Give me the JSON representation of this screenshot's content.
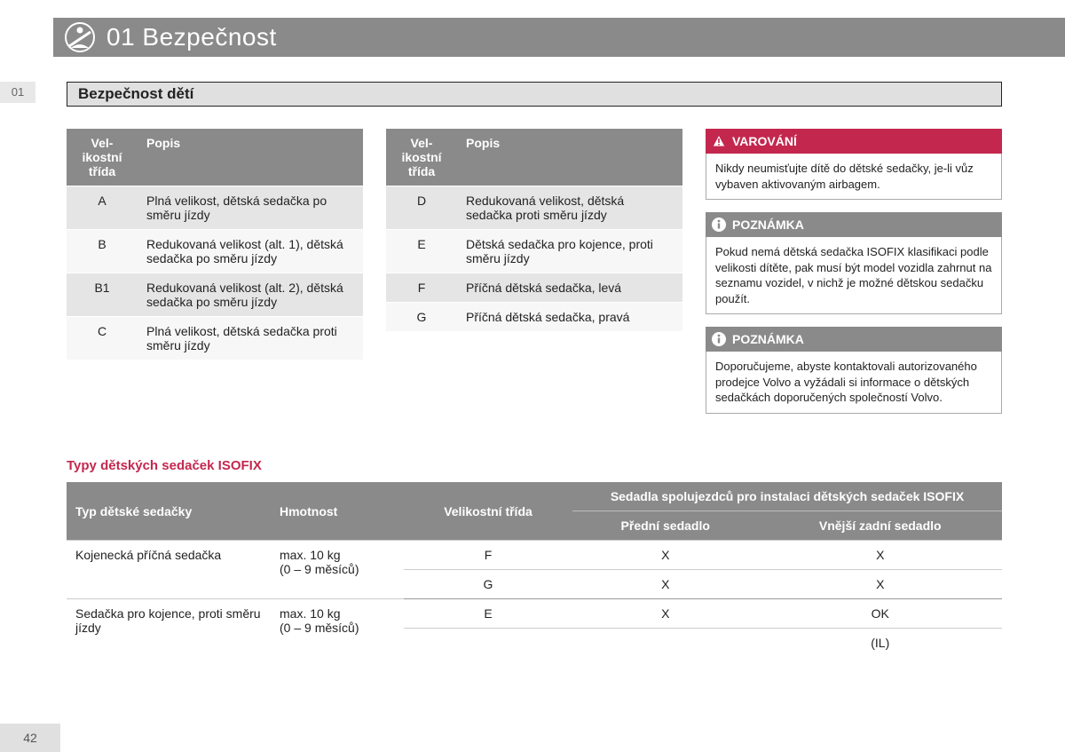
{
  "header": {
    "chapter": "01 Bezpečnost"
  },
  "tab": "01",
  "sub_title": "Bezpečnost dětí",
  "table_a": {
    "cols": {
      "size": "Velikostní třída",
      "desc": "Popis"
    },
    "rows": [
      {
        "sz": "A",
        "desc": "Plná velikost, dětská sedačka po směru jízdy"
      },
      {
        "sz": "B",
        "desc": "Redukovaná velikost (alt. 1), dětská sedačka po směru jízdy"
      },
      {
        "sz": "B1",
        "desc": "Redukovaná velikost (alt. 2), dětská sedačka po směru jízdy"
      },
      {
        "sz": "C",
        "desc": "Plná velikost, dětská sedačka proti směru jízdy"
      }
    ]
  },
  "table_b": {
    "cols": {
      "size": "Velikostní třída",
      "desc": "Popis"
    },
    "rows": [
      {
        "sz": "D",
        "desc": "Redukovaná velikost, dětská sedačka proti směru jízdy"
      },
      {
        "sz": "E",
        "desc": "Dětská sedačka pro kojence, proti směru jízdy"
      },
      {
        "sz": "F",
        "desc": "Příčná dětská sedačka, levá"
      },
      {
        "sz": "G",
        "desc": "Příčná dětská sedačka, pravá"
      }
    ]
  },
  "warning": {
    "title": "VAROVÁNÍ",
    "body": "Nikdy neumisťujte dítě do dětské sedačky, je-li vůz vybaven aktivovaným airbagem."
  },
  "note1": {
    "title": "POZNÁMKA",
    "body": "Pokud nemá dětská sedačka ISOFIX klasifikaci podle velikosti dítěte, pak musí být model vozidla zahrnut na seznamu vozidel, v nichž je možné dětskou sedačku použít."
  },
  "note2": {
    "title": "POZNÁMKA",
    "body": "Doporučujeme, abyste kontaktovali autorizovaného prodejce Volvo a vyžádali si informace o dětských sedačkách doporučených společností Volvo."
  },
  "big": {
    "section_title": "Typy dětských sedaček ISOFIX",
    "headers": {
      "type": "Typ dětské sedačky",
      "weight": "Hmotnost",
      "size": "Velikostní třída",
      "seats": "Sedadla spolujezdců pro instalaci dětských sedaček ISOFIX",
      "front": "Přední sedadlo",
      "rear": "Vnější zadní sedadlo"
    },
    "rows": [
      {
        "type": "Kojenecká příčná sedačka",
        "w1": "max. 10 kg",
        "w2": "(0 – 9 měsíců)",
        "sz": "F",
        "front": "X",
        "rear": "X"
      },
      {
        "type": "",
        "w1": "",
        "w2": "",
        "sz": "G",
        "front": "X",
        "rear": "X"
      },
      {
        "type": "Sedačka pro kojence, proti směru jízdy",
        "w1": "max. 10 kg",
        "w2": "(0 – 9 měsíců)",
        "sz": "E",
        "front": "X",
        "rear": "OK"
      },
      {
        "type": "",
        "w1": "",
        "w2": "",
        "sz": "",
        "front": "",
        "rear": "(IL)"
      }
    ]
  },
  "page_number": "42"
}
